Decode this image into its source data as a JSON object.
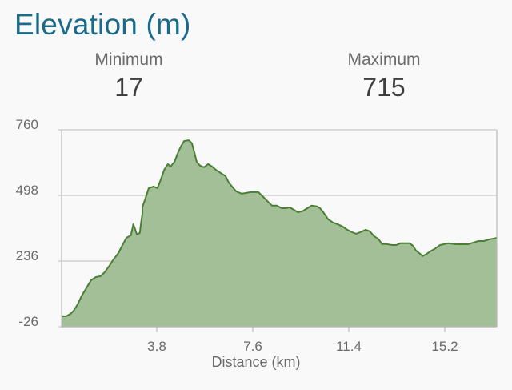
{
  "header": {
    "title": "Elevation (m)"
  },
  "stats": {
    "minimum_label": "Minimum",
    "minimum_value": "17",
    "maximum_label": "Maximum",
    "maximum_value": "715"
  },
  "colors": {
    "title": "#1a6a8a",
    "fill": "#a3bf98",
    "line": "#4a7f35",
    "grid": "#c8c8c8",
    "background": "#f9f9f9"
  },
  "chart_data": {
    "type": "area",
    "title": "Elevation (m)",
    "xlabel": "Distance (km)",
    "ylabel": "",
    "xlim": [
      0,
      17.2
    ],
    "ylim": [
      -26,
      760
    ],
    "grid": true,
    "legend": "none",
    "y_ticks": [
      "760",
      "498",
      "236",
      "-26"
    ],
    "x_ticks": [
      "3.8",
      "7.6",
      "11.4",
      "15.2"
    ],
    "x_tick_values": [
      3.8,
      7.6,
      11.4,
      15.2
    ],
    "y_tick_values": [
      760,
      498,
      236,
      -26
    ],
    "summary": {
      "minimum": 17,
      "maximum": 715
    },
    "x": [
      0.03,
      0.22,
      0.38,
      0.51,
      0.67,
      0.82,
      1.01,
      1.2,
      1.39,
      1.58,
      1.74,
      1.9,
      2.09,
      2.28,
      2.44,
      2.6,
      2.77,
      2.83,
      2.87,
      2.93,
      3.01,
      3.13,
      3.17,
      3.23,
      3.23,
      3.36,
      3.48,
      3.67,
      3.83,
      3.96,
      4.09,
      4.24,
      4.34,
      4.5,
      4.62,
      4.75,
      4.88,
      5.07,
      5.19,
      5.29,
      5.38,
      5.51,
      5.67,
      5.83,
      5.99,
      6.14,
      6.33,
      6.52,
      6.65,
      6.78,
      6.94,
      7.16,
      7.35,
      7.51,
      7.82,
      7.98,
      8.2,
      8.36,
      8.55,
      8.74,
      8.9,
      9.06,
      9.22,
      9.38,
      9.57,
      9.76,
      9.92,
      10.14,
      10.26,
      10.39,
      10.58,
      10.77,
      10.96,
      11.15,
      11.34,
      11.53,
      11.69,
      11.85,
      12.07,
      12.23,
      12.39,
      12.58,
      12.71,
      12.87,
      13.12,
      13.28,
      13.44,
      13.68,
      13.81,
      13.94,
      14.06,
      14.22,
      14.32,
      14.44,
      14.63,
      14.79,
      15.01,
      15.33,
      15.64,
      15.96,
      16.12,
      16.34,
      16.53,
      16.75,
      16.97,
      17.16,
      17.29
    ],
    "elevation": [
      16,
      16,
      25,
      38,
      64,
      96,
      128,
      160,
      172,
      176,
      192,
      214,
      243,
      268,
      300,
      329,
      338,
      364,
      383,
      367,
      342,
      348,
      383,
      425,
      451,
      489,
      527,
      533,
      527,
      562,
      600,
      623,
      613,
      632,
      664,
      693,
      715,
      718,
      706,
      668,
      632,
      617,
      610,
      623,
      613,
      600,
      587,
      575,
      549,
      533,
      514,
      505,
      508,
      511,
      511,
      495,
      473,
      457,
      457,
      447,
      447,
      450,
      441,
      431,
      435,
      447,
      457,
      454,
      447,
      431,
      403,
      390,
      383,
      374,
      361,
      351,
      345,
      351,
      361,
      355,
      336,
      323,
      304,
      304,
      300,
      300,
      307,
      307,
      307,
      297,
      278,
      265,
      256,
      262,
      275,
      284,
      300,
      307,
      303,
      303,
      303,
      310,
      316,
      316,
      323,
      326,
      329
    ]
  }
}
